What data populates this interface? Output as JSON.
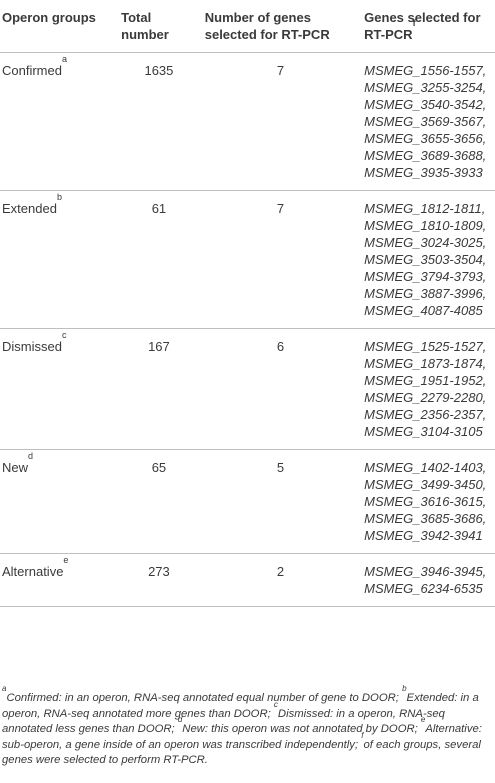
{
  "headers": {
    "col1": "Operon groups",
    "col2_line1": "Total",
    "col2_line2": "number",
    "col3_line1": "Number of genes",
    "col3_line2": "selected for RT-PCR",
    "col4_line1": "Genes selected for",
    "col4_line2": "RT-PCR",
    "col4_sup": "f"
  },
  "rows": [
    {
      "group": "Confirmed",
      "sup": "a",
      "total": "1635",
      "num_selected": "7",
      "genes": [
        "MSMEG_1556-1557,",
        "MSMEG_3255-3254,",
        "MSMEG_3540-3542,",
        "MSMEG_3569-3567,",
        "MSMEG_3655-3656,",
        "MSMEG_3689-3688,",
        "MSMEG_3935-3933"
      ]
    },
    {
      "group": "Extended",
      "sup": "b",
      "total": "61",
      "num_selected": "7",
      "genes": [
        "MSMEG_1812-1811,",
        "MSMEG_1810-1809,",
        "MSMEG_3024-3025,",
        "MSMEG_3503-3504,",
        "MSMEG_3794-3793,",
        "MSMEG_3887-3996,",
        "MSMEG_4087-4085"
      ]
    },
    {
      "group": "Dismissed",
      "sup": "c",
      "total": "167",
      "num_selected": "6",
      "genes": [
        "MSMEG_1525-1527,",
        "MSMEG_1873-1874,",
        "MSMEG_1951-1952,",
        "MSMEG_2279-2280,",
        "MSMEG_2356-2357,",
        "MSMEG_3104-3105"
      ]
    },
    {
      "group": "New",
      "sup": "d",
      "total": "65",
      "num_selected": "5",
      "genes": [
        "MSMEG_1402-1403,",
        "MSMEG_3499-3450,",
        "MSMEG_3616-3615,",
        "MSMEG_3685-3686,",
        "MSMEG_3942-3941"
      ]
    },
    {
      "group": "Alternative",
      "sup": "e",
      "total": "273",
      "num_selected": "2",
      "genes": [
        "MSMEG_3946-3945,",
        "MSMEG_6234-6535"
      ]
    }
  ],
  "footnote": {
    "a_mark": "a",
    "a": "Confirmed: in an operon, RNA-seq annotated equal number of gene to DOOR; ",
    "b_mark": "b",
    "b": "Extended: in a operon, RNA-seq annotated more genes than DOOR; ",
    "c_mark": "c",
    "c": "Dismissed: in a operon, RNA-seq annotated less genes than DOOR; ",
    "d_mark": "d",
    "d": "New: this operon was not annotated by DOOR; ",
    "e_mark": "e",
    "e": "Alternative: sub-operon, a gene inside of an operon was transcribed independently; ",
    "f_mark": "f",
    "f": "of each groups, several genes were selected to perform RT-PCR."
  }
}
